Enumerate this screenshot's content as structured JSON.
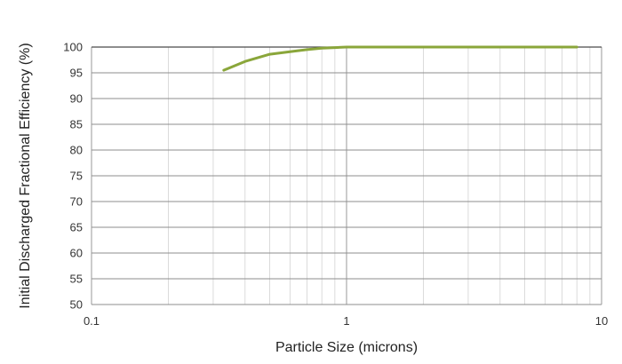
{
  "chart_data": {
    "type": "line",
    "xlabel": "Particle Size (microns)",
    "ylabel": "Initial Discharged Fractional Efficiency (%)",
    "x_scale": "log",
    "xlim": [
      0.1,
      10
    ],
    "ylim": [
      50,
      100
    ],
    "x_ticks": [
      "0.1",
      "1",
      "10"
    ],
    "y_ticks": [
      "50",
      "55",
      "60",
      "65",
      "70",
      "75",
      "80",
      "85",
      "90",
      "95",
      "100"
    ],
    "grid": true,
    "series": [
      {
        "color": "#8aa63a",
        "x": [
          0.33,
          0.4,
          0.5,
          0.6,
          0.7,
          0.8,
          0.9,
          1.0,
          2.0,
          5.0,
          8.0
        ],
        "y": [
          95.5,
          97.2,
          98.6,
          99.1,
          99.5,
          99.8,
          99.9,
          100,
          100,
          100,
          100
        ]
      }
    ]
  }
}
